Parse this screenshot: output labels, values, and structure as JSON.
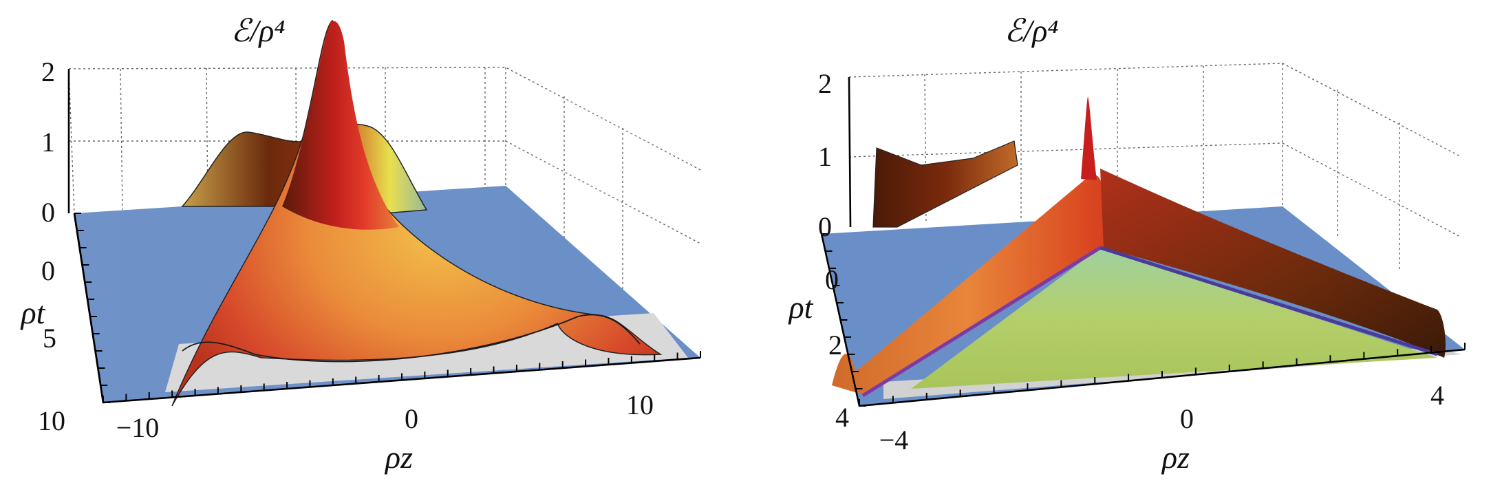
{
  "chart_data": [
    {
      "type": "surface3d",
      "title": "ℰ/ρ⁴",
      "xlabel": "ρz",
      "ylabel": "ρt",
      "zlabel": "",
      "x_ticks": [
        "−10",
        "0",
        "10"
      ],
      "y_ticks": [
        "0",
        "5",
        "10"
      ],
      "z_ticks": [
        "0",
        "1",
        "2"
      ],
      "x_range": [
        -13,
        13
      ],
      "y_range": [
        -1,
        10
      ],
      "z_range": [
        0,
        2
      ],
      "colors": {
        "low": "#6a8fc8",
        "mid": "#e8a23a",
        "high": "#c81e1e",
        "dark": "#5a1a0a"
      },
      "features": {
        "central_peak_height": 2.0,
        "side_ridge_height": 0.8,
        "front_ridge_height": 0.35
      }
    },
    {
      "type": "surface3d",
      "title": "ℰ/ρ⁴",
      "xlabel": "ρz",
      "ylabel": "ρt",
      "zlabel": "",
      "x_ticks": [
        "−4",
        "0",
        "4"
      ],
      "y_ticks": [
        "0",
        "2",
        "4"
      ],
      "z_ticks": [
        "0",
        "1",
        "2"
      ],
      "x_range": [
        -4.5,
        4.5
      ],
      "y_range": [
        -1,
        4
      ],
      "z_range": [
        0,
        2
      ],
      "colors": {
        "low": "#6a8fc8",
        "mid": "#b7cf6a",
        "high": "#c81e1e",
        "dark": "#5a1a0a"
      },
      "features": {
        "central_spike_height": 1.8,
        "ridge_height": 1.0,
        "front_ridge_height": 0.4
      }
    }
  ]
}
